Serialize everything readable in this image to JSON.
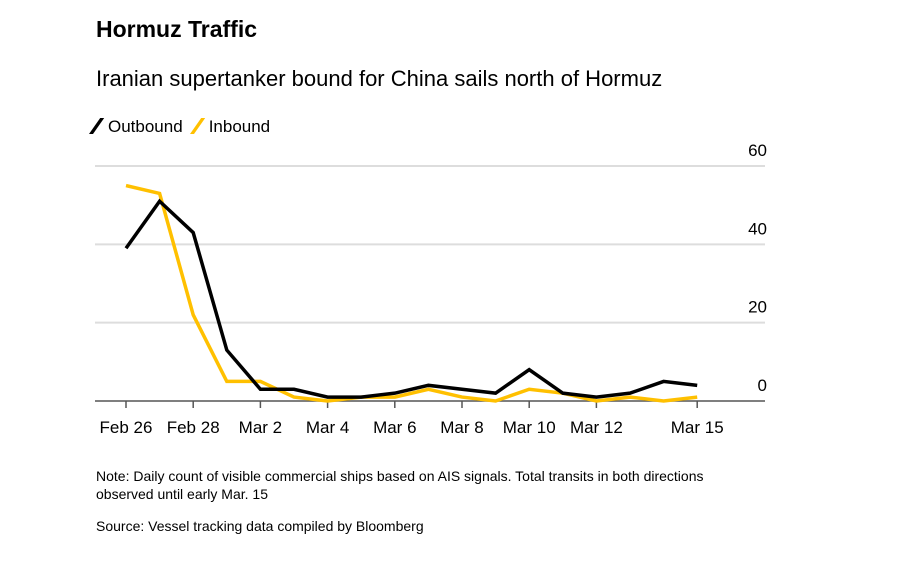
{
  "title": "Hormuz Traffic",
  "subtitle": "Iranian supertanker bound for China sails north of Hormuz",
  "note": "Note: Daily count of visible commercial ships based on AIS signals. Total transits in both directions observed until early Mar. 15",
  "source": "Source: Vessel tracking data compiled by Bloomberg",
  "colors": {
    "outbound": "#000000",
    "inbound": "#ffc000",
    "grid": "#dddddd"
  },
  "chart_data": {
    "type": "line",
    "title": "Hormuz Traffic",
    "ylim": [
      0,
      60
    ],
    "yticks": [
      0,
      20,
      40,
      60
    ],
    "xticks": [
      {
        "label": "Feb 26",
        "index": 0
      },
      {
        "label": "Feb 28",
        "index": 2
      },
      {
        "label": "Mar 2",
        "index": 4
      },
      {
        "label": "Mar 4",
        "index": 6
      },
      {
        "label": "Mar 6",
        "index": 8
      },
      {
        "label": "Mar 8",
        "index": 10
      },
      {
        "label": "Mar 10",
        "index": 12
      },
      {
        "label": "Mar 12",
        "index": 14
      },
      {
        "label": "Mar 15",
        "index": 17
      }
    ],
    "x": [
      "Feb 26",
      "Feb 27",
      "Feb 28",
      "Mar 1",
      "Mar 2",
      "Mar 3",
      "Mar 4",
      "Mar 5",
      "Mar 6",
      "Mar 7",
      "Mar 8",
      "Mar 9",
      "Mar 10",
      "Mar 11",
      "Mar 12",
      "Mar 13",
      "Mar 14",
      "Mar 15"
    ],
    "series": [
      {
        "name": "Outbound",
        "values": [
          39,
          51,
          43,
          13,
          3,
          3,
          1,
          1,
          2,
          4,
          3,
          2,
          8,
          2,
          1,
          2,
          5,
          4
        ]
      },
      {
        "name": "Inbound",
        "values": [
          55,
          53,
          22,
          5,
          5,
          1,
          0,
          1,
          1,
          3,
          1,
          0,
          3,
          2,
          0,
          1,
          0,
          1
        ]
      }
    ],
    "grid": true,
    "legend": "top-left"
  }
}
